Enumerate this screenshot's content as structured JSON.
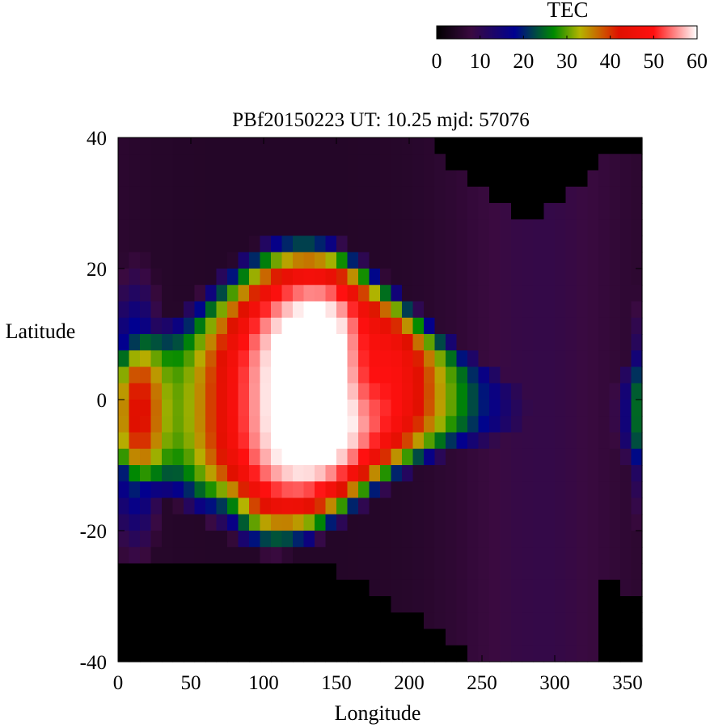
{
  "chart_data": {
    "type": "heatmap",
    "title": "PBf20150223  UT: 10.25  mjd: 57076",
    "xlabel": "Longitude",
    "ylabel": "Latitude",
    "xlim": [
      0,
      360
    ],
    "ylim": [
      -40,
      40
    ],
    "x_ticks": [
      "0",
      "50",
      "100",
      "150",
      "200",
      "250",
      "300",
      "350"
    ],
    "y_ticks": [
      "40",
      "20",
      "0",
      "-20",
      "-40"
    ],
    "grid": false,
    "colorbar": {
      "label": "TEC",
      "range": [
        0,
        60
      ],
      "ticks": [
        "0",
        "10",
        "20",
        "30",
        "40",
        "50",
        "60"
      ],
      "stops": [
        {
          "value": 0,
          "color": "#000000"
        },
        {
          "value": 8,
          "color": "#3a0a40"
        },
        {
          "value": 18,
          "color": "#000090"
        },
        {
          "value": 27,
          "color": "#008a00"
        },
        {
          "value": 33,
          "color": "#b4b400"
        },
        {
          "value": 42,
          "color": "#e01000"
        },
        {
          "value": 50,
          "color": "#ff1010"
        },
        {
          "value": 60,
          "color": "#ffffff"
        }
      ]
    },
    "grid_resolution": {
      "lon_step": 7.5,
      "lat_step": 2.5
    },
    "features": {
      "crest_region": {
        "lon_range": [
          50,
          220
        ],
        "lat_range": [
          -15,
          28
        ],
        "tec": "60+"
      },
      "low_tec_night_north": {
        "lon_range": [
          210,
          330
        ],
        "lat_range": [
          25,
          40
        ],
        "tec": 0
      },
      "low_tec_south": {
        "lon_range": [
          0,
          250
        ],
        "lat_range": [
          -40,
          -25
        ],
        "tec": 0
      }
    }
  }
}
